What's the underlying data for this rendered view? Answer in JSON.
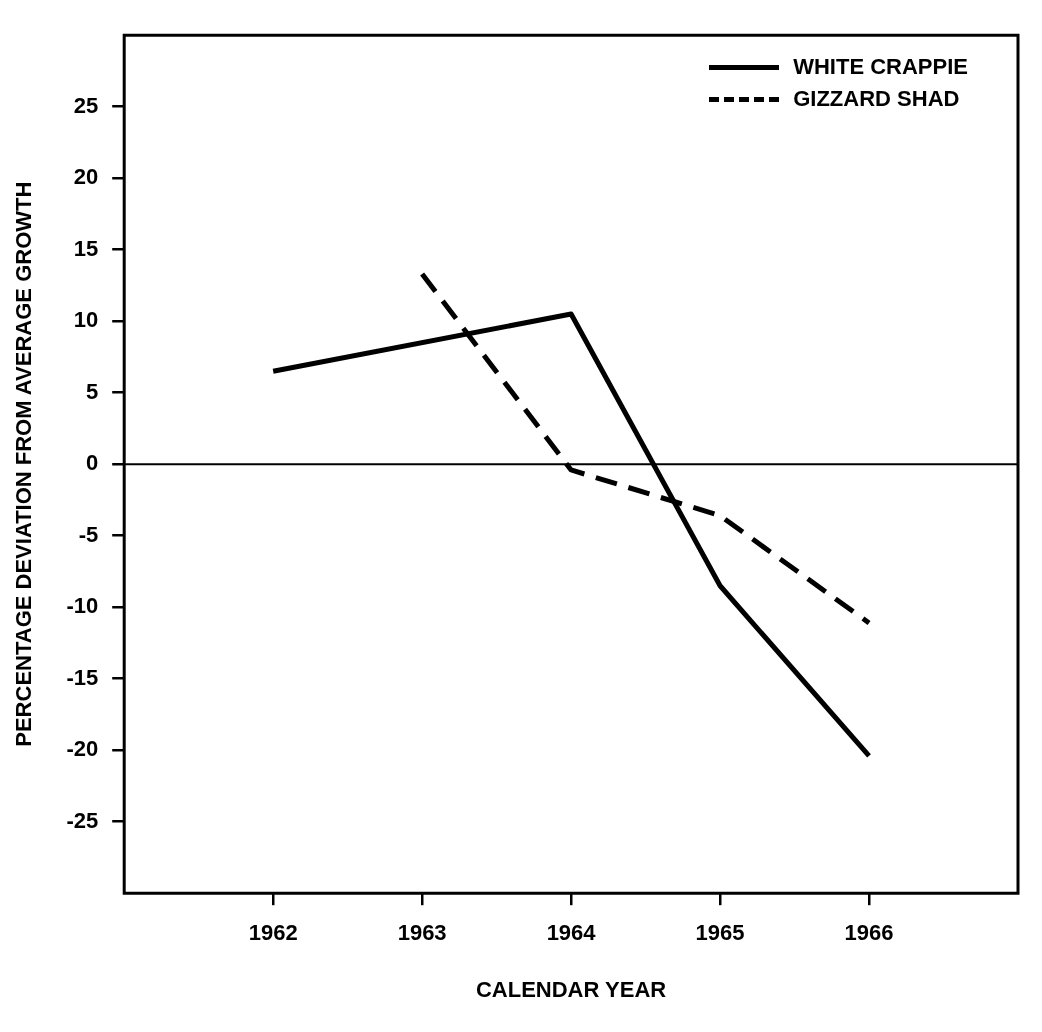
{
  "chart_data": {
    "type": "line",
    "xlabel": "CALENDAR YEAR",
    "ylabel": "PERCENTAGE DEVIATION FROM AVERAGE GROWTH",
    "xlim": [
      1961,
      1967
    ],
    "xticks": [
      1962,
      1963,
      1964,
      1965,
      1966
    ],
    "ylim": [
      -30,
      30
    ],
    "yticks": [
      -25,
      -20,
      -15,
      -10,
      -5,
      0,
      5,
      10,
      15,
      20,
      25
    ],
    "grid": false,
    "legend": "top right",
    "marker": "none",
    "ref_lines": [
      {
        "axis": "y",
        "value": 0,
        "color": "#000000"
      }
    ],
    "series": [
      {
        "name": "WHITE CRAPPIE",
        "color": "#000000",
        "line_style": "solid",
        "x": [
          1962,
          1964,
          1965,
          1966
        ],
        "values": [
          6.5,
          10.5,
          -8.5,
          -20.4
        ]
      },
      {
        "name": "GIZZARD SHAD",
        "color": "#000000",
        "line_style": "dashed",
        "x": [
          1963,
          1964,
          1965,
          1966
        ],
        "values": [
          13.3,
          -0.4,
          -3.6,
          -11.1
        ]
      }
    ]
  }
}
